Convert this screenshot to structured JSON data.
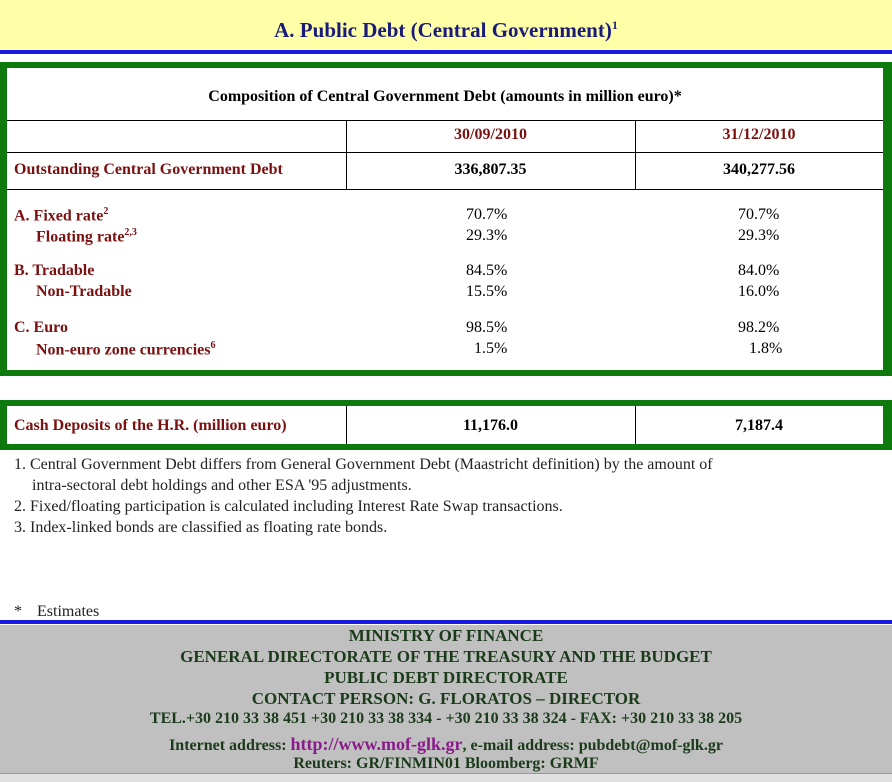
{
  "title": {
    "text": "A. Public Debt (Central Government)",
    "sup": "1"
  },
  "table": {
    "caption": "Composition of Central Government Debt (amounts in million euro)*",
    "col1": "30/09/2010",
    "col2": "31/12/2010",
    "outstanding": {
      "label": "Outstanding Central Government Debt",
      "v1": "336,807.35",
      "v2": "340,277.56"
    },
    "rows": [
      {
        "label": "A. Fixed rate",
        "sup": "2",
        "v1": "70.7%",
        "v2": "70.7%"
      },
      {
        "label": "Floating rate",
        "sup": "2,3",
        "v1": "29.3%",
        "v2": "29.3%"
      },
      {
        "label": "B. Tradable",
        "sup": "",
        "v1": "84.5%",
        "v2": "84.0%"
      },
      {
        "label": "Non-Tradable",
        "sup": "",
        "v1": "15.5%",
        "v2": "16.0%"
      },
      {
        "label": "C. Euro",
        "sup": "",
        "v1": "98.5%",
        "v2": "98.2%"
      },
      {
        "label": "Non-euro zone currencies",
        "sup": "6",
        "v1": "1.5%",
        "v2": "1.8%"
      }
    ]
  },
  "cash": {
    "label": "Cash Deposits of the H.R. (million euro)",
    "v1": "11,176.0",
    "v2": "7,187.4"
  },
  "notes": {
    "n1a": "1. Central Government Debt differs from General Government Debt (Maastricht definition) by the amount of",
    "n1b": "intra-sectoral debt holdings and other ESA '95 adjustments.",
    "n2": "2. Fixed/floating participation is calculated including Interest Rate Swap transactions.",
    "n3": "3. Index-linked bonds are classified as floating rate bonds.",
    "estimates_mark": "*",
    "estimates": "Estimates"
  },
  "footer": {
    "l1": "MINISTRY OF FINANCE",
    "l2": "GENERAL DIRECTORATE OF THE TREASURY AND THE BUDGET",
    "l3": "PUBLIC DEBT DIRECTORATE",
    "l4": "CONTACT PERSON: G.  FLORATOS – DIRECTOR",
    "l5": "TEL.+30 210 33 38 451 +30 210 33 38 334 - +30 210 33 38 324 - FAX: +30 210 33 38 205",
    "internet_label": "Internet address: ",
    "internet_url": "http://www.mof-glk.gr",
    "email_text": ", e-mail address: pubdebt@mof-glk.gr",
    "l7": "Reuters: GR/FINMIN01 Bloomberg: GRMF"
  },
  "colors": {
    "green": "#0e7a0e",
    "blue": "#1a1ae0",
    "maroon": "#7a1010",
    "title_bg": "#ffffa8",
    "footer_bg": "#c0c0c0"
  }
}
